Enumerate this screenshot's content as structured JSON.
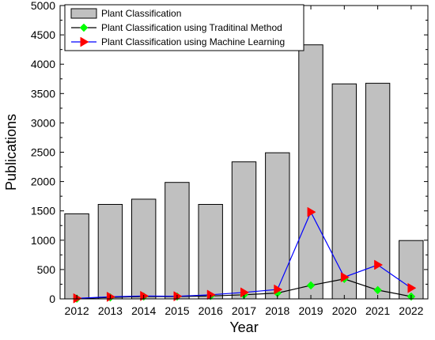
{
  "chart_data": {
    "type": "bar",
    "categories": [
      "2012",
      "2013",
      "2014",
      "2015",
      "2016",
      "2017",
      "2018",
      "2019",
      "2020",
      "2021",
      "2022"
    ],
    "xlabel": "Year",
    "ylabel": "Publications",
    "ylim": [
      0,
      5000
    ],
    "yticks": [
      0,
      500,
      1000,
      1500,
      2000,
      2500,
      3000,
      3500,
      4000,
      4500,
      5000
    ],
    "legend_position": "top-left",
    "series": [
      {
        "name": "Plant Classification",
        "kind": "bar",
        "color": "#c0c0c0",
        "values": [
          1450,
          1610,
          1700,
          1985,
          1610,
          2335,
          2490,
          4330,
          3665,
          3675,
          995
        ]
      },
      {
        "name": "Plant Classification using Traditinal Method",
        "kind": "line",
        "color": "#000000",
        "marker": "diamond",
        "marker_color": "#00ff00",
        "values": [
          5,
          25,
          40,
          40,
          50,
          70,
          100,
          230,
          340,
          150,
          40
        ]
      },
      {
        "name": "Plant Classification using Machine Learning",
        "kind": "line",
        "color": "#0000ff",
        "marker": "triangle-right",
        "marker_color": "#ff0000",
        "values": [
          10,
          35,
          50,
          45,
          70,
          110,
          160,
          1480,
          370,
          580,
          185
        ]
      }
    ]
  }
}
